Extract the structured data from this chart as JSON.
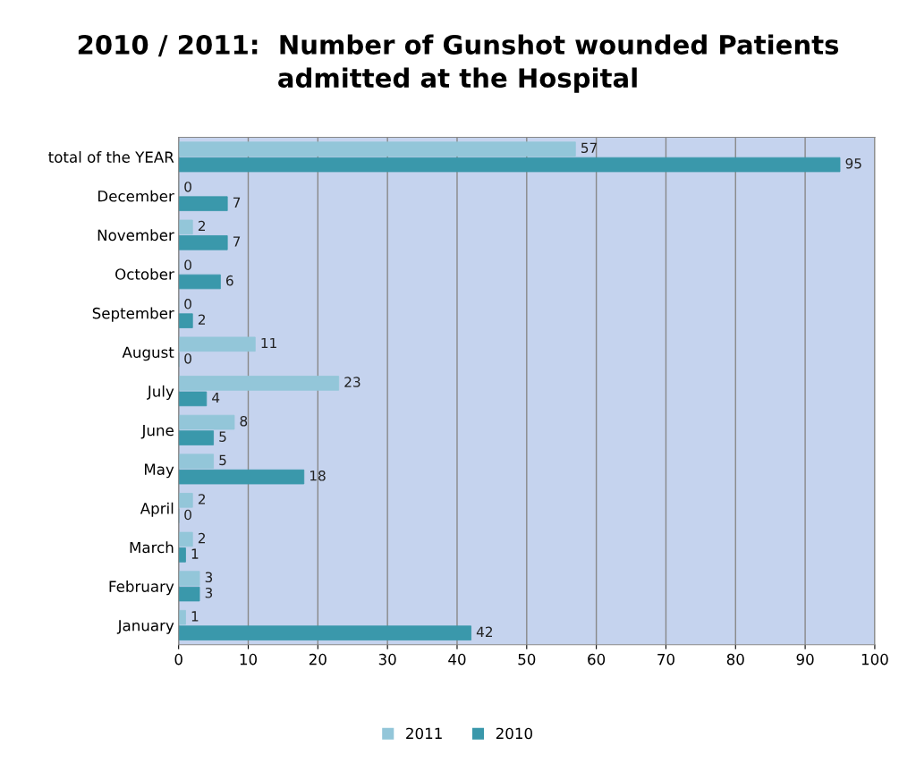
{
  "chart_data": {
    "type": "bar",
    "orientation": "horizontal",
    "title": "2010 / 2011:  Number of Gunshot wounded Patients\nadmitted at the Hospital",
    "categories": [
      "total of the YEAR",
      "December",
      "November",
      "October",
      "September",
      "August",
      "July",
      "June",
      "May",
      "April",
      "March",
      "February",
      "January"
    ],
    "series": [
      {
        "name": "2011",
        "color": "#93c6d9",
        "values": [
          57,
          0,
          2,
          0,
          0,
          11,
          23,
          8,
          5,
          2,
          2,
          3,
          1
        ]
      },
      {
        "name": "2010",
        "color": "#3a98ab",
        "values": [
          95,
          7,
          7,
          6,
          2,
          0,
          4,
          5,
          18,
          0,
          1,
          3,
          42
        ]
      }
    ],
    "xlim": [
      0,
      100
    ],
    "xticks": [
      0,
      10,
      20,
      30,
      40,
      50,
      60,
      70,
      80,
      90,
      100
    ],
    "grid": "x",
    "legend": "bottom",
    "data_labels": true
  }
}
